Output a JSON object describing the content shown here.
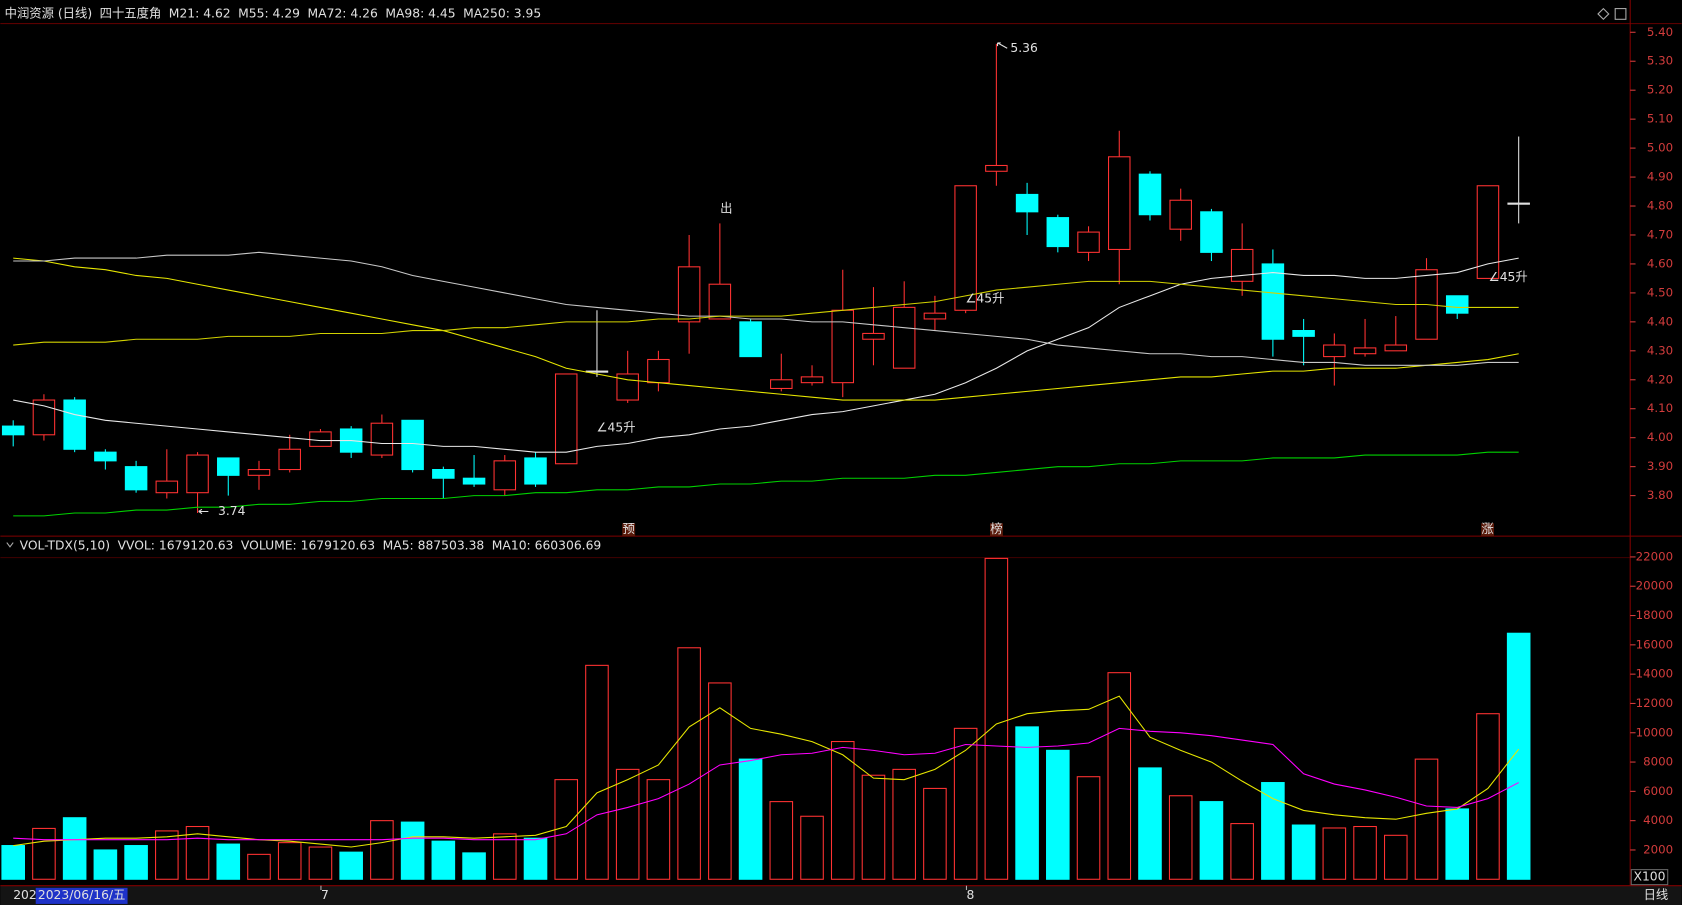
{
  "chart_data": [
    {
      "type": "candlestick",
      "title": "中润资源 (日线)",
      "subtitle": "四十五度角",
      "open": [
        4.04,
        4.01,
        4.13,
        3.95,
        3.9,
        3.81,
        3.81,
        3.93,
        3.87,
        3.89,
        3.97,
        4.03,
        3.94,
        4.06,
        3.89,
        3.86,
        3.82,
        3.93,
        3.91,
        4.23,
        4.13,
        4.19,
        4.4,
        4.41,
        4.4,
        4.17,
        4.19,
        4.19,
        4.34,
        4.24,
        4.41,
        4.44,
        4.92,
        4.84,
        4.76,
        4.64,
        4.65,
        4.91,
        4.72,
        4.78,
        4.54,
        4.6,
        4.37,
        4.28,
        4.29,
        4.3,
        4.34,
        4.49,
        4.55,
        4.81
      ],
      "high": [
        4.06,
        4.15,
        4.14,
        3.96,
        3.92,
        3.96,
        3.95,
        3.93,
        3.92,
        4.01,
        4.03,
        4.04,
        4.08,
        4.06,
        3.9,
        3.94,
        3.94,
        3.95,
        4.22,
        4.44,
        4.3,
        4.3,
        4.7,
        4.74,
        4.41,
        4.29,
        4.25,
        4.58,
        4.52,
        4.54,
        4.49,
        4.87,
        5.36,
        4.88,
        4.77,
        4.73,
        5.06,
        4.92,
        4.86,
        4.79,
        4.74,
        4.65,
        4.41,
        4.36,
        4.41,
        4.42,
        4.62,
        4.49,
        4.87,
        5.04
      ],
      "low": [
        3.97,
        3.99,
        3.95,
        3.89,
        3.81,
        3.79,
        3.74,
        3.8,
        3.82,
        3.88,
        3.97,
        3.93,
        3.93,
        3.88,
        3.79,
        3.83,
        3.8,
        3.83,
        3.91,
        4.21,
        4.12,
        4.16,
        4.29,
        4.41,
        4.28,
        4.16,
        4.18,
        4.14,
        4.25,
        4.24,
        4.37,
        4.43,
        4.87,
        4.7,
        4.64,
        4.61,
        4.53,
        4.75,
        4.68,
        4.61,
        4.49,
        4.28,
        4.25,
        4.18,
        4.28,
        4.3,
        4.34,
        4.41,
        4.55,
        4.74
      ],
      "close": [
        4.01,
        4.13,
        3.96,
        3.92,
        3.82,
        3.85,
        3.94,
        3.87,
        3.89,
        3.96,
        4.02,
        3.95,
        4.05,
        3.89,
        3.86,
        3.84,
        3.92,
        3.84,
        4.22,
        4.23,
        4.22,
        4.27,
        4.59,
        4.53,
        4.28,
        4.2,
        4.21,
        4.44,
        4.36,
        4.45,
        4.43,
        4.87,
        4.94,
        4.78,
        4.66,
        4.71,
        4.97,
        4.77,
        4.82,
        4.64,
        4.65,
        4.34,
        4.35,
        4.32,
        4.31,
        4.32,
        4.58,
        4.43,
        4.87,
        4.81
      ],
      "up_color": "#ff3232",
      "down_color": "#00ffff",
      "flat_color": "#e0e0e0",
      "series": [
        {
          "name": "M21: 4.62",
          "color": "#e8e8e8",
          "values": [
            4.13,
            4.11,
            4.08,
            4.06,
            4.05,
            4.04,
            4.03,
            4.02,
            4.01,
            4.0,
            3.99,
            3.99,
            3.98,
            3.98,
            3.97,
            3.97,
            3.96,
            3.95,
            3.95,
            3.97,
            3.98,
            4.0,
            4.01,
            4.03,
            4.04,
            4.06,
            4.08,
            4.09,
            4.11,
            4.13,
            4.15,
            4.19,
            4.24,
            4.3,
            4.34,
            4.38,
            4.45,
            4.49,
            4.53,
            4.55,
            4.56,
            4.57,
            4.56,
            4.56,
            4.55,
            4.55,
            4.56,
            4.57,
            4.6,
            4.62
          ]
        },
        {
          "name": "M55: 4.29",
          "color": "#e6e600",
          "values": [
            4.62,
            4.61,
            4.59,
            4.58,
            4.56,
            4.55,
            4.53,
            4.51,
            4.49,
            4.47,
            4.45,
            4.43,
            4.41,
            4.39,
            4.37,
            4.34,
            4.31,
            4.28,
            4.24,
            4.22,
            4.2,
            4.19,
            4.18,
            4.17,
            4.16,
            4.15,
            4.14,
            4.13,
            4.13,
            4.13,
            4.13,
            4.14,
            4.15,
            4.16,
            4.17,
            4.18,
            4.19,
            4.2,
            4.21,
            4.21,
            4.22,
            4.23,
            4.23,
            4.24,
            4.24,
            4.24,
            4.25,
            4.26,
            4.27,
            4.29
          ]
        },
        {
          "name": "MA72: 4.26",
          "color": "#c8c8c8",
          "values": [
            4.61,
            4.61,
            4.62,
            4.62,
            4.62,
            4.63,
            4.63,
            4.63,
            4.64,
            4.63,
            4.62,
            4.61,
            4.59,
            4.56,
            4.54,
            4.52,
            4.5,
            4.48,
            4.46,
            4.45,
            4.44,
            4.43,
            4.42,
            4.42,
            4.41,
            4.41,
            4.4,
            4.4,
            4.39,
            4.38,
            4.37,
            4.36,
            4.35,
            4.34,
            4.32,
            4.31,
            4.3,
            4.29,
            4.29,
            4.28,
            4.28,
            4.27,
            4.26,
            4.26,
            4.25,
            4.25,
            4.25,
            4.25,
            4.26,
            4.26
          ]
        },
        {
          "name": "MA98: 4.45",
          "color": "#d2d200",
          "values": [
            4.32,
            4.33,
            4.33,
            4.33,
            4.34,
            4.34,
            4.34,
            4.35,
            4.35,
            4.35,
            4.36,
            4.36,
            4.36,
            4.37,
            4.37,
            4.38,
            4.38,
            4.39,
            4.4,
            4.4,
            4.4,
            4.41,
            4.41,
            4.42,
            4.42,
            4.42,
            4.43,
            4.44,
            4.45,
            4.46,
            4.47,
            4.49,
            4.51,
            4.52,
            4.53,
            4.54,
            4.54,
            4.54,
            4.53,
            4.52,
            4.51,
            4.5,
            4.49,
            4.48,
            4.47,
            4.46,
            4.46,
            4.45,
            4.45,
            4.45
          ]
        },
        {
          "name": "MA250: 3.95",
          "color": "#00d200",
          "values": [
            3.73,
            3.73,
            3.74,
            3.74,
            3.75,
            3.75,
            3.76,
            3.76,
            3.77,
            3.77,
            3.78,
            3.78,
            3.79,
            3.79,
            3.79,
            3.8,
            3.8,
            3.81,
            3.81,
            3.82,
            3.82,
            3.83,
            3.83,
            3.84,
            3.84,
            3.85,
            3.85,
            3.86,
            3.86,
            3.86,
            3.87,
            3.87,
            3.88,
            3.89,
            3.9,
            3.9,
            3.91,
            3.91,
            3.92,
            3.92,
            3.92,
            3.93,
            3.93,
            3.93,
            3.94,
            3.94,
            3.94,
            3.94,
            3.95,
            3.95
          ]
        }
      ],
      "annotations": [
        "5.36",
        "3.74",
        "出",
        "∠45升",
        "∠45升",
        "∠45升",
        "预",
        "榜",
        "涨"
      ],
      "ylim": [
        3.66,
        5.43
      ],
      "yticks": [
        {
          "value": 3.8,
          "label": "3.80"
        },
        {
          "value": 3.9,
          "label": "3.90"
        },
        {
          "value": 4.0,
          "label": "4.00"
        },
        {
          "value": 4.1,
          "label": "4.10"
        },
        {
          "value": 4.2,
          "label": "4.20"
        },
        {
          "value": 4.3,
          "label": "4.30"
        },
        {
          "value": 4.4,
          "label": "4.40"
        },
        {
          "value": 4.5,
          "label": "4.50"
        },
        {
          "value": 4.6,
          "label": "4.60"
        },
        {
          "value": 4.7,
          "label": "4.70"
        },
        {
          "value": 4.8,
          "label": "4.80"
        },
        {
          "value": 4.9,
          "label": "4.90"
        },
        {
          "value": 5.0,
          "label": "5.00"
        },
        {
          "value": 5.1,
          "label": "5.10"
        },
        {
          "value": 5.2,
          "label": "5.20"
        },
        {
          "value": 5.3,
          "label": "5.30"
        },
        {
          "value": 5.4,
          "label": "5.40"
        }
      ],
      "grid": false
    },
    {
      "type": "bar",
      "title": "VOL-TDX(5,10)",
      "subtitle": "VVOL: 1679120.63",
      "name": "VOLUME: 1679120.63",
      "values": [
        2300,
        3470,
        4200,
        2000,
        2300,
        3300,
        3600,
        2400,
        1700,
        2500,
        2200,
        1850,
        4000,
        3900,
        2600,
        1800,
        3100,
        2800,
        6800,
        14600,
        7500,
        6800,
        15800,
        13400,
        8200,
        5300,
        4300,
        9400,
        7100,
        7500,
        6200,
        10300,
        21900,
        10400,
        8800,
        7000,
        14100,
        7600,
        5700,
        5300,
        3800,
        6600,
        3700,
        3500,
        3600,
        3000,
        8200,
        4800,
        11300,
        16791
      ],
      "colors": [
        "#00ffff",
        "#ff3232",
        "#00ffff",
        "#00ffff",
        "#00ffff",
        "#ff3232",
        "#ff3232",
        "#00ffff",
        "#ff3232",
        "#ff3232",
        "#ff3232",
        "#00ffff",
        "#ff3232",
        "#00ffff",
        "#00ffff",
        "#00ffff",
        "#ff3232",
        "#00ffff",
        "#ff3232",
        "#ff3232",
        "#ff3232",
        "#ff3232",
        "#ff3232",
        "#ff3232",
        "#00ffff",
        "#ff3232",
        "#ff3232",
        "#ff3232",
        "#ff3232",
        "#ff3232",
        "#ff3232",
        "#ff3232",
        "#ff3232",
        "#00ffff",
        "#00ffff",
        "#ff3232",
        "#ff3232",
        "#00ffff",
        "#ff3232",
        "#00ffff",
        "#ff3232",
        "#00ffff",
        "#00ffff",
        "#ff3232",
        "#ff3232",
        "#ff3232",
        "#ff3232",
        "#00ffff",
        "#ff3232",
        "#00ffff"
      ],
      "series": [
        {
          "name": "MA5: 887503.38",
          "color": "#e6e600",
          "values": [
            2300,
            2600,
            2700,
            2800,
            2800,
            2900,
            3100,
            2900,
            2700,
            2600,
            2400,
            2200,
            2500,
            2900,
            2900,
            2800,
            2900,
            3000,
            3600,
            5900,
            6800,
            7800,
            10400,
            11700,
            10300,
            9900,
            9400,
            8500,
            6900,
            6800,
            7500,
            8800,
            10600,
            11300,
            11500,
            11600,
            12500,
            9700,
            8800,
            8000,
            6700,
            5500,
            4700,
            4400,
            4200,
            4100,
            4500,
            4800,
            6200,
            8875
          ]
        },
        {
          "name": "MA10: 660306.69",
          "color": "#ff00ff",
          "values": [
            2800,
            2700,
            2700,
            2700,
            2700,
            2700,
            2800,
            2700,
            2700,
            2700,
            2700,
            2700,
            2700,
            2800,
            2800,
            2700,
            2700,
            2700,
            3100,
            4400,
            4900,
            5500,
            6500,
            7800,
            8100,
            8500,
            8600,
            9000,
            8800,
            8500,
            8600,
            9200,
            9100,
            9000,
            9100,
            9300,
            10300,
            10100,
            10000,
            9800,
            9500,
            9200,
            7200,
            6500,
            6100,
            5600,
            5000,
            4900,
            5500,
            6603
          ]
        }
      ],
      "x_labels": [
        "202",
        "2023/06/16/五",
        "7",
        "8"
      ],
      "unit": "X100",
      "period": "日线",
      "ylim": [
        0,
        23200
      ],
      "yticks": [
        2000,
        4000,
        6000,
        8000,
        10000,
        12000,
        14000,
        16000,
        18000,
        20000,
        22000
      ],
      "grid": false
    }
  ]
}
